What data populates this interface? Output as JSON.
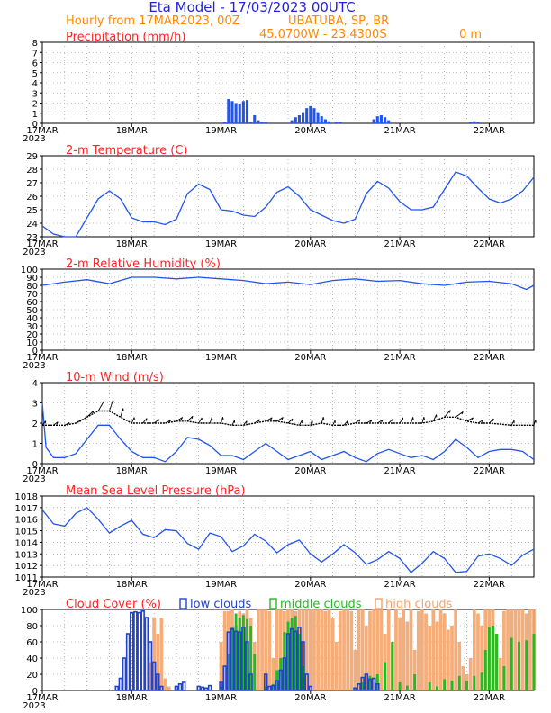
{
  "header": {
    "title": "Eta Model - 17/03/2023 00UTC",
    "subtitle": "Hourly from 17MAR2023, 00Z",
    "location": "UBATUBA, SP, BR",
    "coords": "45.0700W - 23.4300S",
    "elevation": "0   m"
  },
  "colors": {
    "title": "#2222dd",
    "subtitle": "#ff8800",
    "panel_title": "#ff2222",
    "series": "#2255ee",
    "low_clouds": "#2244cc",
    "middle_clouds": "#22bb22",
    "high_clouds": "#f4a46a",
    "grid": "#888888"
  },
  "chart_data": [
    {
      "type": "bar",
      "title": "Precipitation (mm/h)",
      "ylim": [
        0,
        8
      ],
      "yticks": [
        0,
        1,
        2,
        3,
        4,
        5,
        6,
        7,
        8
      ],
      "xticks": [
        "17MAR",
        "18MAR",
        "19MAR",
        "20MAR",
        "21MAR",
        "22MAR"
      ],
      "xlabel_year": "2023",
      "hours": [
        49,
        50,
        51,
        52,
        53,
        54,
        55,
        56,
        57,
        58,
        59,
        60,
        67,
        68,
        69,
        70,
        71,
        72,
        73,
        74,
        75,
        76,
        77,
        79,
        80,
        89,
        90,
        91,
        92,
        93,
        115,
        116,
        117
      ],
      "values": [
        0.1,
        2.4,
        2.2,
        2.0,
        1.9,
        2.2,
        2.3,
        0.1,
        0.8,
        0.3,
        0.1,
        0.1,
        0.3,
        0.6,
        0.8,
        1.1,
        1.5,
        1.7,
        1.5,
        1.1,
        0.7,
        0.4,
        0.2,
        0.1,
        0.1,
        0.4,
        0.7,
        0.8,
        0.6,
        0.3,
        0.1,
        0.2,
        0.1
      ]
    },
    {
      "type": "line",
      "title": "2-m Temperature (C)",
      "ylim": [
        23,
        29
      ],
      "yticks": [
        23,
        24,
        25,
        26,
        27,
        28,
        29
      ],
      "xticks": [
        "17MAR",
        "18MAR",
        "19MAR",
        "20MAR",
        "21MAR",
        "22MAR"
      ],
      "xlabel_year": "2023",
      "x": [
        0,
        3,
        6,
        9,
        12,
        15,
        18,
        21,
        24,
        27,
        30,
        33,
        36,
        39,
        42,
        45,
        48,
        51,
        54,
        57,
        60,
        63,
        66,
        69,
        72,
        75,
        78,
        81,
        84,
        87,
        90,
        93,
        96,
        99,
        102,
        105,
        108,
        111,
        114,
        117,
        120,
        123,
        126,
        129,
        132
      ],
      "values": [
        23.8,
        23.2,
        22.9,
        23.0,
        24.4,
        25.8,
        26.4,
        25.8,
        24.4,
        24.1,
        24.1,
        23.9,
        24.3,
        26.2,
        26.9,
        26.5,
        25.0,
        24.9,
        24.6,
        24.5,
        25.2,
        26.3,
        26.7,
        26.0,
        25.0,
        24.6,
        24.2,
        24.0,
        24.3,
        26.2,
        27.1,
        26.6,
        25.6,
        25.0,
        25.0,
        25.2,
        26.5,
        27.8,
        27.5,
        26.6,
        25.8,
        25.5,
        25.8,
        26.4,
        27.4
      ]
    },
    {
      "type": "line",
      "title": "2-m Relative Humidity (%)",
      "ylim": [
        0,
        100
      ],
      "yticks": [
        0,
        10,
        20,
        30,
        40,
        50,
        60,
        70,
        80,
        90,
        100
      ],
      "xticks": [
        "17MAR",
        "18MAR",
        "19MAR",
        "20MAR",
        "21MAR",
        "22MAR"
      ],
      "xlabel_year": "2023",
      "x": [
        0,
        6,
        12,
        18,
        24,
        30,
        36,
        42,
        48,
        54,
        60,
        66,
        72,
        78,
        84,
        90,
        96,
        102,
        108,
        114,
        120,
        126,
        130,
        132
      ],
      "values": [
        80,
        84,
        87,
        82,
        90,
        90,
        88,
        90,
        88,
        86,
        82,
        84,
        81,
        86,
        88,
        85,
        86,
        82,
        80,
        84,
        85,
        82,
        75,
        80
      ]
    },
    {
      "type": "line",
      "title": "10-m Wind (m/s)",
      "ylim": [
        0,
        4
      ],
      "yticks": [
        0,
        1,
        2,
        3,
        4
      ],
      "xticks": [
        "17MAR",
        "18MAR",
        "19MAR",
        "20MAR",
        "21MAR",
        "22MAR"
      ],
      "xlabel_year": "2023",
      "x": [
        0,
        1,
        3,
        6,
        9,
        12,
        15,
        18,
        21,
        24,
        27,
        30,
        33,
        36,
        39,
        42,
        45,
        48,
        51,
        54,
        57,
        60,
        63,
        66,
        69,
        72,
        75,
        78,
        81,
        84,
        87,
        90,
        93,
        96,
        99,
        102,
        105,
        108,
        111,
        114,
        117,
        120,
        123,
        126,
        129,
        132
      ],
      "values": [
        3.0,
        0.8,
        0.3,
        0.3,
        0.5,
        1.2,
        1.9,
        1.9,
        1.2,
        0.6,
        0.3,
        0.3,
        0.1,
        0.6,
        1.3,
        1.2,
        0.9,
        0.4,
        0.4,
        0.2,
        0.6,
        1.0,
        0.6,
        0.2,
        0.4,
        0.6,
        0.2,
        0.4,
        0.6,
        0.3,
        0.1,
        0.5,
        0.7,
        0.5,
        0.3,
        0.4,
        0.2,
        0.6,
        1.2,
        0.8,
        0.3,
        0.6,
        0.7,
        0.7,
        0.6,
        0.2
      ],
      "vector_baseline": [
        1.9,
        1.9,
        1.9,
        2.0,
        2.3,
        2.6,
        2.6,
        2.3,
        2.0,
        2.0,
        2.0,
        2.0,
        2.1,
        2.1,
        2.0,
        2.0,
        2.0,
        1.9,
        1.9,
        2.0,
        2.1,
        2.1,
        2.0,
        1.9,
        1.9,
        2.0,
        1.9,
        1.9,
        2.0,
        2.0,
        2.0,
        2.0,
        2.0,
        2.0,
        2.0,
        2.1,
        2.3,
        2.3,
        2.1,
        2.0,
        2.0,
        1.9,
        1.9
      ],
      "vector_hours": [
        0,
        3,
        6,
        9,
        12,
        15,
        18,
        21,
        24,
        27,
        30,
        33,
        36,
        39,
        42,
        45,
        48,
        51,
        54,
        57,
        60,
        63,
        66,
        69,
        72,
        75,
        78,
        81,
        84,
        87,
        90,
        93,
        96,
        99,
        102,
        105,
        108,
        111,
        114,
        117,
        120,
        126,
        132
      ]
    },
    {
      "type": "line",
      "title": "Mean Sea Level Pressure (hPa)",
      "ylim": [
        1011,
        1018
      ],
      "yticks": [
        1011,
        1012,
        1013,
        1014,
        1015,
        1016,
        1017,
        1018
      ],
      "xticks": [
        "17MAR",
        "18MAR",
        "19MAR",
        "20MAR",
        "21MAR",
        "22MAR"
      ],
      "xlabel_year": "2023",
      "x": [
        0,
        3,
        6,
        9,
        12,
        15,
        18,
        21,
        24,
        27,
        30,
        33,
        36,
        39,
        42,
        45,
        48,
        51,
        54,
        57,
        60,
        63,
        66,
        69,
        72,
        75,
        78,
        81,
        84,
        87,
        90,
        93,
        96,
        99,
        102,
        105,
        108,
        111,
        114,
        117,
        120,
        123,
        126,
        129,
        132
      ],
      "values": [
        1016.8,
        1015.6,
        1015.4,
        1016.5,
        1017.0,
        1016.0,
        1014.8,
        1015.4,
        1015.9,
        1014.7,
        1014.4,
        1015.1,
        1015.0,
        1013.9,
        1013.4,
        1014.8,
        1014.5,
        1013.2,
        1013.7,
        1014.7,
        1014.1,
        1013.1,
        1013.8,
        1014.2,
        1013.0,
        1012.3,
        1013.0,
        1013.8,
        1013.1,
        1012.1,
        1012.5,
        1013.2,
        1012.6,
        1011.4,
        1012.2,
        1013.2,
        1012.6,
        1011.4,
        1011.5,
        1012.8,
        1013.0,
        1012.6,
        1012.0,
        1012.9,
        1013.4
      ]
    },
    {
      "type": "bar",
      "title": "Cloud Cover (%)",
      "ylim": [
        0,
        100
      ],
      "yticks": [
        0,
        20,
        40,
        60,
        80,
        100
      ],
      "xticks": [
        "17MAR",
        "18MAR",
        "19MAR",
        "20MAR",
        "21MAR",
        "22MAR"
      ],
      "xlabel_year": "2023",
      "legend": [
        "low clouds",
        "middle clouds",
        "high clouds"
      ],
      "series": [
        {
          "name": "low clouds",
          "hours": [
            20,
            21,
            22,
            23,
            24,
            25,
            26,
            27,
            28,
            29,
            30,
            31,
            32,
            36,
            37,
            38,
            42,
            43,
            44,
            45,
            48,
            49,
            50,
            51,
            52,
            53,
            54,
            55,
            56,
            60,
            61,
            62,
            63,
            64,
            65,
            66,
            67,
            68,
            69,
            70,
            71,
            72,
            84,
            85,
            86,
            87,
            88,
            89,
            90
          ],
          "values": [
            5,
            15,
            40,
            70,
            96,
            97,
            96,
            98,
            90,
            60,
            35,
            20,
            5,
            5,
            8,
            10,
            5,
            4,
            3,
            6,
            10,
            30,
            72,
            76,
            73,
            72,
            78,
            60,
            20,
            20,
            5,
            6,
            12,
            25,
            40,
            70,
            76,
            73,
            78,
            60,
            20,
            5,
            3,
            8,
            16,
            20,
            14,
            15,
            8
          ]
        },
        {
          "name": "middle clouds",
          "hours": [
            48,
            50,
            51,
            52,
            53,
            54,
            55,
            56,
            57,
            60,
            62,
            63,
            64,
            65,
            66,
            67,
            68,
            69,
            70,
            84,
            86,
            88,
            90,
            92,
            94,
            96,
            98,
            100,
            104,
            106,
            108,
            110,
            112,
            114,
            116,
            118,
            119,
            120,
            121,
            122,
            124,
            126,
            128,
            130,
            132
          ],
          "values": [
            5,
            45,
            78,
            95,
            90,
            93,
            88,
            80,
            45,
            5,
            8,
            25,
            40,
            72,
            85,
            90,
            92,
            70,
            30,
            4,
            10,
            18,
            20,
            35,
            60,
            10,
            6,
            20,
            10,
            5,
            14,
            12,
            18,
            12,
            18,
            22,
            50,
            78,
            80,
            70,
            30,
            65,
            60,
            62,
            70
          ]
        },
        {
          "name": "high clouds",
          "hours": [
            29,
            30,
            31,
            32,
            33,
            34,
            48,
            49,
            50,
            51,
            52,
            53,
            54,
            55,
            56,
            57,
            58,
            59,
            60,
            61,
            62,
            63,
            64,
            65,
            66,
            67,
            68,
            69,
            70,
            71,
            72,
            73,
            74,
            75,
            76,
            77,
            78,
            79,
            80,
            81,
            82,
            83,
            84,
            85,
            86,
            87,
            88,
            89,
            90,
            91,
            92,
            93,
            94,
            95,
            96,
            97,
            98,
            99,
            100,
            101,
            102,
            103,
            104,
            105,
            106,
            107,
            108,
            109,
            110,
            111,
            112,
            113,
            114,
            115,
            116,
            117,
            118,
            119,
            120,
            121,
            122,
            123,
            124,
            125,
            126,
            127,
            128,
            129,
            130,
            131,
            132
          ],
          "values": [
            35,
            90,
            70,
            90,
            15,
            5,
            60,
            98,
            98,
            100,
            80,
            98,
            95,
            100,
            90,
            60,
            100,
            100,
            100,
            98,
            40,
            100,
            100,
            98,
            100,
            100,
            98,
            100,
            100,
            100,
            100,
            100,
            100,
            100,
            98,
            100,
            90,
            60,
            98,
            100,
            100,
            98,
            50,
            100,
            100,
            80,
            98,
            100,
            100,
            100,
            70,
            100,
            60,
            100,
            90,
            100,
            85,
            100,
            50,
            98,
            100,
            95,
            80,
            100,
            85,
            100,
            95,
            75,
            80,
            100,
            60,
            30,
            20,
            40,
            100,
            95,
            80,
            100,
            100,
            100,
            70,
            40,
            98,
            100,
            100,
            100,
            100,
            100,
            95,
            100,
            100
          ]
        }
      ]
    }
  ]
}
